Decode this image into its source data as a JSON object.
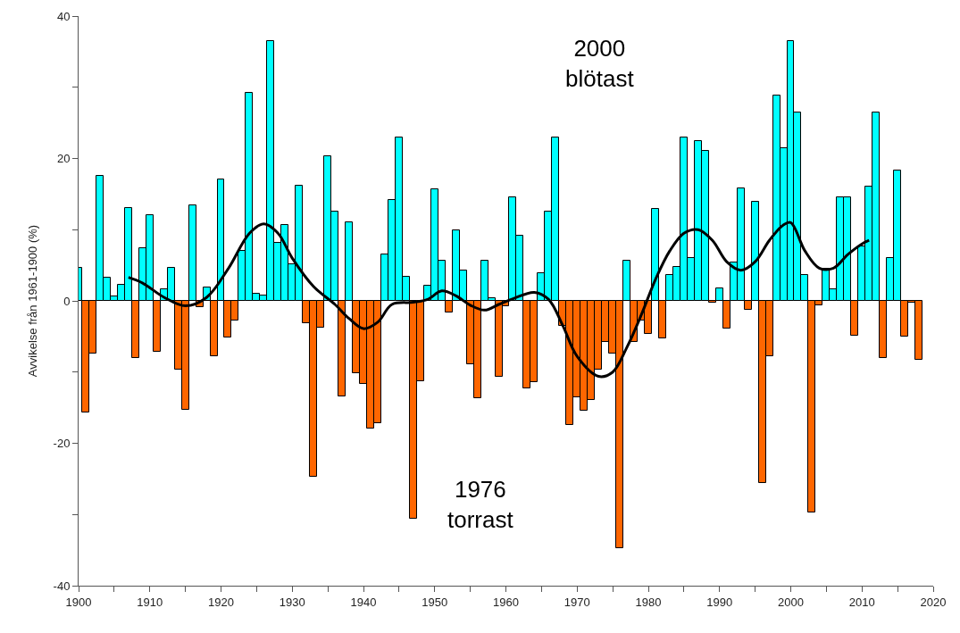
{
  "chart_data": {
    "type": "bar",
    "ylabel": "Avvikelse från 1961-1900 (%)",
    "annotations": [
      "2000\nblötast",
      "1976\ntorrast"
    ],
    "xlim": [
      1900,
      2020
    ],
    "xticks": [
      1900,
      {
        "value": 1905,
        "label": null
      },
      1910,
      {
        "value": 1915,
        "label": null
      },
      1920,
      {
        "value": 1925,
        "label": null
      },
      1930,
      {
        "value": 1935,
        "label": null
      },
      1940,
      {
        "value": 1945,
        "label": null
      },
      1950,
      {
        "value": 1955,
        "label": null
      },
      1960,
      {
        "value": 1965,
        "label": null
      },
      1970,
      {
        "value": 1975,
        "label": null
      },
      1980,
      {
        "value": 1985,
        "label": null
      },
      1990,
      {
        "value": 1995,
        "label": null
      },
      2000,
      {
        "value": 2005,
        "label": null
      },
      2010,
      {
        "value": 2015,
        "label": null
      },
      2020
    ],
    "ylim": [
      -40,
      40
    ],
    "yticks": [
      -40,
      {
        "value": -30,
        "label": null
      },
      -20,
      {
        "value": -10,
        "label": null
      },
      0,
      {
        "value": 10,
        "label": null
      },
      20,
      {
        "value": 30,
        "label": null
      },
      40
    ],
    "series": [
      {
        "x": [
          1900,
          1901,
          1902,
          1903,
          1904,
          1905,
          1906,
          1907,
          1908,
          1909,
          1910,
          1911,
          1912,
          1913,
          1914,
          1915,
          1916,
          1917,
          1918,
          1919,
          1920,
          1921,
          1922,
          1923,
          1924,
          1925,
          1926,
          1927,
          1928,
          1929,
          1930,
          1931,
          1932,
          1933,
          1934,
          1935,
          1936,
          1937,
          1938,
          1939,
          1940,
          1941,
          1942,
          1943,
          1944,
          1945,
          1946,
          1947,
          1948,
          1949,
          1950,
          1951,
          1952,
          1953,
          1954,
          1955,
          1956,
          1957,
          1958,
          1959,
          1960,
          1961,
          1962,
          1963,
          1964,
          1965,
          1966,
          1967,
          1968,
          1969,
          1970,
          1971,
          1972,
          1973,
          1974,
          1975,
          1976,
          1977,
          1978,
          1979,
          1980,
          1981,
          1982,
          1983,
          1984,
          1985,
          1986,
          1987,
          1988,
          1989,
          1990,
          1991,
          1992,
          1993,
          1994,
          1995,
          1996,
          1997,
          1998,
          1999,
          2000,
          2001,
          2002,
          2003,
          2004,
          2005,
          2006,
          2007,
          2008,
          2009,
          2010,
          2011,
          2012,
          2013,
          2014,
          2015,
          2016,
          2017,
          2018
        ],
        "values": [
          4.6,
          -15.7,
          -7.4,
          17.6,
          3.2,
          0.6,
          2.2,
          13.1,
          -8.0,
          7.4,
          12.1,
          -7.2,
          1.6,
          4.7,
          -9.7,
          -15.3,
          13.4,
          -0.9,
          1.9,
          -7.8,
          17.0,
          -5.2,
          -2.7,
          7.0,
          29.2,
          1.0,
          0.7,
          36.5,
          8.1,
          10.6,
          5.1,
          16.2,
          -3.1,
          -24.7,
          -3.7,
          20.3,
          12.6,
          -13.4,
          11.0,
          -10.1,
          -11.6,
          -17.9,
          -17.2,
          6.5,
          14.2,
          23.0,
          3.4,
          -30.6,
          -11.3,
          2.1,
          15.7,
          5.7,
          -1.6,
          9.9,
          4.3,
          -8.9,
          -13.7,
          5.6,
          0.4,
          -10.6,
          -0.7,
          14.5,
          9.2,
          -12.3,
          -11.4,
          3.9,
          12.6,
          23.0,
          -3.5,
          -17.4,
          -13.5,
          -15.4,
          -13.9,
          -9.7,
          -5.8,
          -7.4,
          -34.7,
          5.6,
          -5.8,
          -2.8,
          -4.6,
          12.9,
          -5.3,
          3.6,
          4.8,
          23.0,
          6.0,
          22.4,
          21.1,
          -0.2,
          1.8,
          -3.9,
          5.4,
          15.8,
          -1.3,
          13.9,
          -25.6,
          -7.8,
          28.8,
          21.5,
          36.5,
          26.5,
          3.6,
          -29.7,
          -0.6,
          4.5,
          1.6,
          14.5,
          14.5,
          -4.9,
          7.6,
          16.0,
          26.4,
          -8.0,
          6.0,
          18.3,
          -5.0,
          -0.3,
          -8.3
        ],
        "colors": [
          "#00ffff",
          "#ff6600",
          "#ff6600",
          "#00ffff",
          "#00ffff",
          "#00ffff",
          "#00ffff",
          "#00ffff",
          "#ff6600",
          "#00ffff",
          "#00ffff",
          "#ff6600",
          "#00ffff",
          "#00ffff",
          "#ff6600",
          "#ff6600",
          "#00ffff",
          "#ff6600",
          "#00ffff",
          "#ff6600",
          "#00ffff",
          "#ff6600",
          "#ff6600",
          "#00ffff",
          "#00ffff",
          "#00ffff",
          "#00ffff",
          "#00ffff",
          "#00ffff",
          "#00ffff",
          "#00ffff",
          "#00ffff",
          "#ff6600",
          "#ff6600",
          "#ff6600",
          "#00ffff",
          "#00ffff",
          "#ff6600",
          "#00ffff",
          "#ff6600",
          "#ff6600",
          "#ff6600",
          "#ff6600",
          "#00ffff",
          "#00ffff",
          "#00ffff",
          "#00ffff",
          "#ff6600",
          "#ff6600",
          "#00ffff",
          "#00ffff",
          "#00ffff",
          "#ff6600",
          "#00ffff",
          "#00ffff",
          "#ff6600",
          "#ff6600",
          "#00ffff",
          "#00ffff",
          "#ff6600",
          "#ff6600",
          "#00ffff",
          "#00ffff",
          "#ff6600",
          "#ff6600",
          "#00ffff",
          "#00ffff",
          "#00ffff",
          "#ff6600",
          "#ff6600",
          "#ff6600",
          "#ff6600",
          "#ff6600",
          "#ff6600",
          "#ff6600",
          "#ff6600",
          "#ff6600",
          "#00ffff",
          "#ff6600",
          "#ff6600",
          "#ff6600",
          "#00ffff",
          "#ff6600",
          "#00ffff",
          "#00ffff",
          "#00ffff",
          "#00ffff",
          "#00ffff",
          "#00ffff",
          "#ff6600",
          "#00ffff",
          "#ff6600",
          "#00ffff",
          "#00ffff",
          "#ff6600",
          "#00ffff",
          "#ff6600",
          "#ff6600",
          "#00ffff",
          "#00ffff",
          "#00ffff",
          "#00ffff",
          "#00ffff",
          "#ff6600",
          "#ff6600",
          "#00ffff",
          "#00ffff",
          "#00ffff",
          "#00ffff",
          "#ff6600",
          "#00ffff",
          "#00ffff",
          "#00ffff",
          "#ff6600",
          "#00ffff",
          "#00ffff",
          "#ff6600",
          "#ff6600",
          "#ff6600"
        ]
      },
      {
        "type": "line",
        "color": "#000000",
        "marker": "none",
        "line_style": "solid",
        "x": [
          1907,
          1909,
          1912,
          1915,
          1918,
          1921,
          1924,
          1926,
          1928,
          1930,
          1933,
          1936,
          1938,
          1940,
          1942,
          1944,
          1947,
          1949,
          1951,
          1953,
          1955,
          1957,
          1959,
          1961,
          1964,
          1966,
          1968,
          1970,
          1973,
          1975,
          1977,
          1979,
          1981,
          1983,
          1985,
          1987,
          1989,
          1991,
          1993,
          1995,
          1997,
          1999,
          2000,
          2002,
          2004,
          2006,
          2008,
          2010,
          2011
        ],
        "values": [
          3.3,
          2.5,
          0.5,
          -0.7,
          0.5,
          4.5,
          9.5,
          10.8,
          9.5,
          6.0,
          2.0,
          -0.5,
          -2.5,
          -3.9,
          -3.0,
          -0.5,
          -0.2,
          0.2,
          1.4,
          0.7,
          -0.6,
          -1.3,
          -0.5,
          0.3,
          1.2,
          0.2,
          -3.5,
          -7.8,
          -10.6,
          -10.0,
          -6.5,
          -2.0,
          3.0,
          7.0,
          9.5,
          10.0,
          8.5,
          5.5,
          4.3,
          5.5,
          8.5,
          10.7,
          11.0,
          7.0,
          4.6,
          4.6,
          6.5,
          8.0,
          8.5
        ]
      }
    ]
  }
}
